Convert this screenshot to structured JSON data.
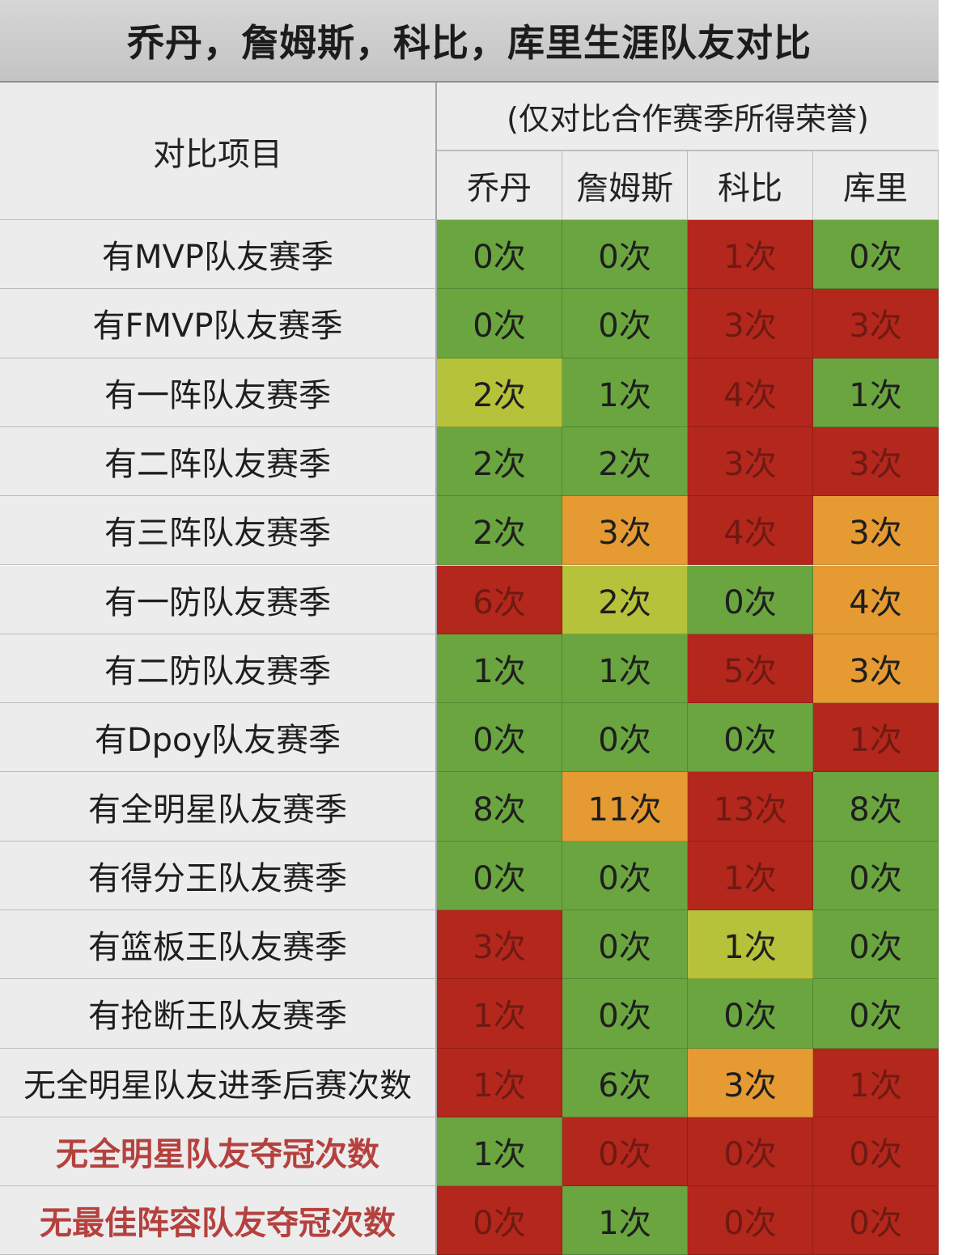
{
  "title": "乔丹，詹姆斯，科比，库里生涯队友对比",
  "header": {
    "item_label": "对比项目",
    "note": "(仅对比合作赛季所得荣誉)",
    "players": [
      "乔丹",
      "詹姆斯",
      "科比",
      "库里"
    ]
  },
  "colors": {
    "green": "#6aa53f",
    "yellow_green": "#b6c23a",
    "orange": "#e59a32",
    "red": "#b3271d"
  },
  "rows": [
    {
      "label": "有MVP队友赛季",
      "emph": false,
      "values": [
        "0次",
        "0次",
        "1次",
        "0次"
      ],
      "colors": [
        "green",
        "green",
        "red",
        "green"
      ]
    },
    {
      "label": "有FMVP队友赛季",
      "emph": false,
      "values": [
        "0次",
        "0次",
        "3次",
        "3次"
      ],
      "colors": [
        "green",
        "green",
        "red",
        "red"
      ]
    },
    {
      "label": "有一阵队友赛季",
      "emph": false,
      "values": [
        "2次",
        "1次",
        "4次",
        "1次"
      ],
      "colors": [
        "yellow_green",
        "green",
        "red",
        "green"
      ]
    },
    {
      "label": "有二阵队友赛季",
      "emph": false,
      "values": [
        "2次",
        "2次",
        "3次",
        "3次"
      ],
      "colors": [
        "green",
        "green",
        "red",
        "red"
      ]
    },
    {
      "label": "有三阵队友赛季",
      "emph": false,
      "values": [
        "2次",
        "3次",
        "4次",
        "3次"
      ],
      "colors": [
        "green",
        "orange",
        "red",
        "orange"
      ]
    },
    {
      "label": "有一防队友赛季",
      "emph": false,
      "values": [
        "6次",
        "2次",
        "0次",
        "4次"
      ],
      "colors": [
        "red",
        "yellow_green",
        "green",
        "orange"
      ]
    },
    {
      "label": "有二防队友赛季",
      "emph": false,
      "values": [
        "1次",
        "1次",
        "5次",
        "3次"
      ],
      "colors": [
        "green",
        "green",
        "red",
        "orange"
      ]
    },
    {
      "label": "有Dpoy队友赛季",
      "emph": false,
      "values": [
        "0次",
        "0次",
        "0次",
        "1次"
      ],
      "colors": [
        "green",
        "green",
        "green",
        "red"
      ]
    },
    {
      "label": "有全明星队友赛季",
      "emph": false,
      "values": [
        "8次",
        "11次",
        "13次",
        "8次"
      ],
      "colors": [
        "green",
        "orange",
        "red",
        "green"
      ]
    },
    {
      "label": "有得分王队友赛季",
      "emph": false,
      "values": [
        "0次",
        "0次",
        "1次",
        "0次"
      ],
      "colors": [
        "green",
        "green",
        "red",
        "green"
      ]
    },
    {
      "label": "有篮板王队友赛季",
      "emph": false,
      "values": [
        "3次",
        "0次",
        "1次",
        "0次"
      ],
      "colors": [
        "red",
        "green",
        "yellow_green",
        "green"
      ]
    },
    {
      "label": "有抢断王队友赛季",
      "emph": false,
      "values": [
        "1次",
        "0次",
        "0次",
        "0次"
      ],
      "colors": [
        "red",
        "green",
        "green",
        "green"
      ]
    },
    {
      "label": "无全明星队友进季后赛次数",
      "emph": false,
      "values": [
        "1次",
        "6次",
        "3次",
        "1次"
      ],
      "colors": [
        "red",
        "green",
        "orange",
        "red"
      ]
    },
    {
      "label": "无全明星队友夺冠次数",
      "emph": true,
      "values": [
        "1次",
        "0次",
        "0次",
        "0次"
      ],
      "colors": [
        "green",
        "red",
        "red",
        "red"
      ]
    },
    {
      "label": "无最佳阵容队友夺冠次数",
      "emph": true,
      "values": [
        "0次",
        "1次",
        "0次",
        "0次"
      ],
      "colors": [
        "red",
        "green",
        "red",
        "red"
      ]
    }
  ]
}
